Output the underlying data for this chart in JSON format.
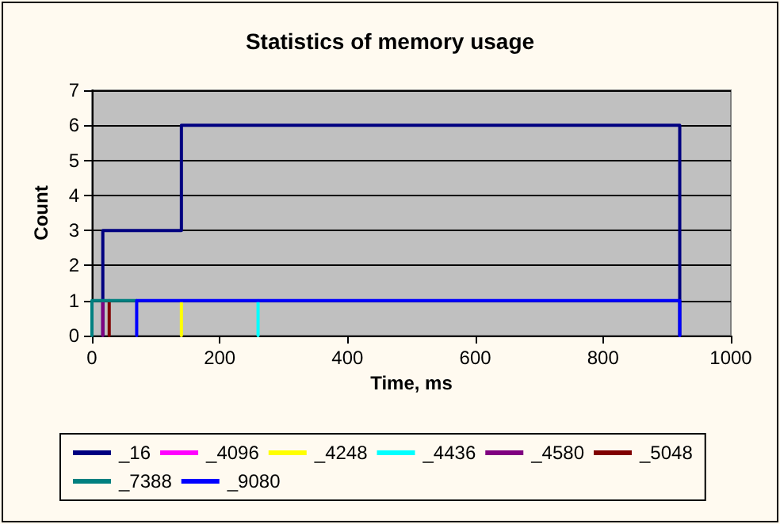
{
  "chart_data": {
    "type": "line",
    "title": "Statistics of memory usage",
    "xlabel": "Time, ms",
    "ylabel": "Count",
    "xlim": [
      0,
      1000
    ],
    "xticks": [
      0,
      200,
      400,
      600,
      800,
      1000
    ],
    "ylim": [
      0,
      7
    ],
    "yticks": [
      0,
      1,
      2,
      3,
      4,
      5,
      6,
      7
    ],
    "grid": "y",
    "legend": "bottom",
    "marker": "none",
    "line_style": "solid",
    "series": [
      {
        "name": "_16",
        "color": "#000080",
        "x": [
          17,
          17,
          140,
          140,
          920,
          920
        ],
        "values": [
          0,
          3,
          3,
          6,
          6,
          0
        ]
      },
      {
        "name": "_4096",
        "color": "#ff00ff"
      },
      {
        "name": "_4248",
        "color": "#ffff00",
        "x": [
          140,
          140
        ],
        "values": [
          0,
          1
        ]
      },
      {
        "name": "_4436",
        "color": "#00ffff",
        "x": [
          260,
          260
        ],
        "values": [
          0,
          1
        ]
      },
      {
        "name": "_4580",
        "color": "#800080",
        "x": [
          17,
          17
        ],
        "values": [
          0,
          1
        ]
      },
      {
        "name": "_5048",
        "color": "#800000",
        "x": [
          27,
          27
        ],
        "values": [
          0,
          1
        ]
      },
      {
        "name": "_7388",
        "color": "#008080",
        "x": [
          0,
          0,
          70
        ],
        "values": [
          0,
          1,
          1
        ]
      },
      {
        "name": "_9080",
        "color": "#0000ff",
        "x": [
          70,
          70,
          920,
          920
        ],
        "values": [
          0,
          1,
          1,
          0
        ]
      }
    ]
  }
}
